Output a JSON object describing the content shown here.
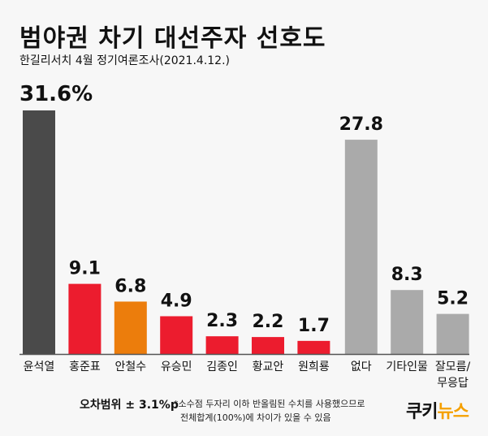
{
  "title": "범야권 차기 대선주자 선호도",
  "subtitle": "한길리서치 4월 정기여론조사(2021.4.12.)",
  "margin_of_error": "오차범위 ± 3.1%p",
  "footnote": [
    "*소수점 두자리 이하 반올림된 수치를 사용했으므로",
    "전체합계(100%)에 차이가 있을 수 있음"
  ],
  "logo": {
    "part1": "쿠키",
    "part2": "뉴스"
  },
  "chart_data": {
    "type": "bar",
    "title": "범야권 차기 대선주자 선호도",
    "categories": [
      "윤석열",
      "홍준표",
      "안철수",
      "유승민",
      "김종인",
      "황교안",
      "원희룡",
      "없다",
      "기타인물",
      "잘모름/무응답"
    ],
    "values": [
      31.6,
      9.1,
      6.8,
      4.9,
      2.3,
      2.2,
      1.7,
      27.8,
      8.3,
      5.2
    ],
    "labels": [
      "31.6%",
      "9.1",
      "6.8",
      "4.9",
      "2.3",
      "2.2",
      "1.7",
      "27.8",
      "8.3",
      "5.2"
    ],
    "colors": [
      "#4a4a4a",
      "#ec1c2e",
      "#ec7d0c",
      "#ec1c2e",
      "#ec1c2e",
      "#ec1c2e",
      "#ec1c2e",
      "#aaaaaa",
      "#aaaaaa",
      "#aaaaaa"
    ],
    "ylim": [
      0,
      31.6
    ],
    "grid": false
  }
}
